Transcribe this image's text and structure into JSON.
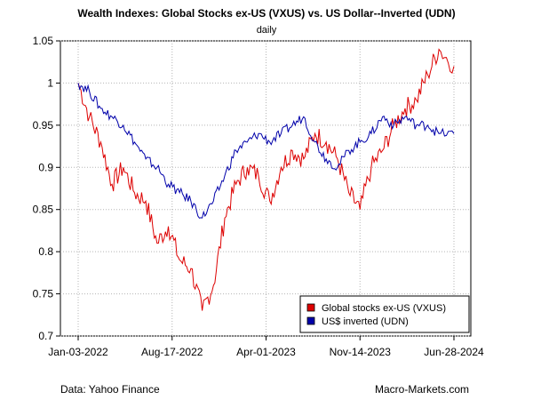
{
  "chart_data": {
    "type": "line",
    "title": "Wealth Indexes: Global Stocks ex-US (VXUS) vs. US Dollar--Inverted (UDN)",
    "subtitle": "daily",
    "xlabel": "",
    "ylabel": "",
    "ylim": [
      0.7,
      1.05
    ],
    "yticks": [
      "0.7",
      "0.75",
      "0.8",
      "0.85",
      "0.9",
      "0.95",
      "1",
      "1.05"
    ],
    "xticks": [
      "Jan-03-2022",
      "Aug-17-2022",
      "Apr-01-2023",
      "Nov-14-2023",
      "Jun-28-2024"
    ],
    "grid": true,
    "legend_position": "bottom-right",
    "x_index": [
      0,
      0.03,
      0.06,
      0.09,
      0.12,
      0.15,
      0.18,
      0.21,
      0.24,
      0.27,
      0.3,
      0.33,
      0.36,
      0.39,
      0.42,
      0.45,
      0.48,
      0.51,
      0.54,
      0.57,
      0.6,
      0.63,
      0.66,
      0.69,
      0.72,
      0.75,
      0.78,
      0.81,
      0.84,
      0.87,
      0.9,
      0.93,
      0.96,
      1.0
    ],
    "series": [
      {
        "name": "Global stocks ex-US (VXUS)",
        "color": "#dd0000",
        "values": [
          1.0,
          0.96,
          0.93,
          0.88,
          0.9,
          0.87,
          0.86,
          0.81,
          0.83,
          0.79,
          0.78,
          0.73,
          0.76,
          0.84,
          0.88,
          0.9,
          0.89,
          0.86,
          0.9,
          0.92,
          0.91,
          0.94,
          0.93,
          0.91,
          0.87,
          0.85,
          0.9,
          0.92,
          0.95,
          0.97,
          0.98,
          1.01,
          1.04,
          1.02
        ]
      },
      {
        "name": "US$ inverted (UDN)",
        "color": "#0000aa",
        "values": [
          1.0,
          0.99,
          0.97,
          0.96,
          0.95,
          0.93,
          0.91,
          0.9,
          0.88,
          0.87,
          0.86,
          0.84,
          0.86,
          0.89,
          0.92,
          0.93,
          0.94,
          0.93,
          0.94,
          0.95,
          0.96,
          0.93,
          0.91,
          0.9,
          0.92,
          0.93,
          0.94,
          0.96,
          0.95,
          0.96,
          0.95,
          0.95,
          0.94,
          0.94
        ]
      }
    ]
  },
  "footer": {
    "source": "Data: Yahoo Finance",
    "brand": "Macro-Markets.com"
  }
}
